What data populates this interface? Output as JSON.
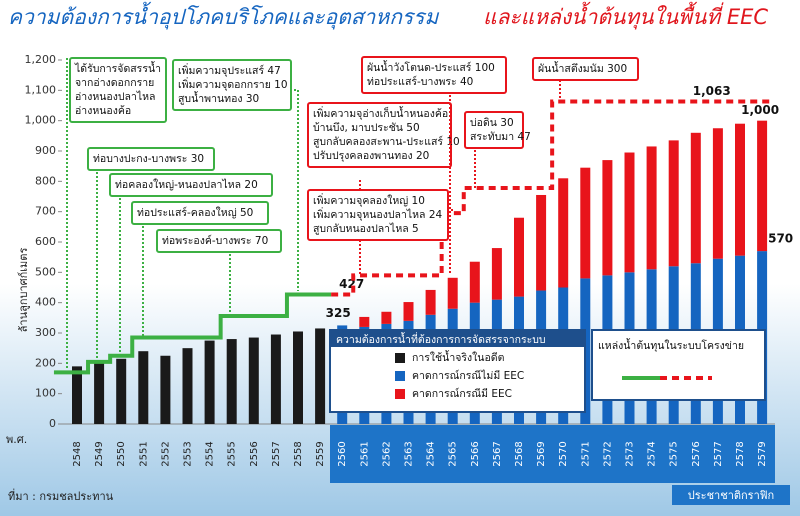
{
  "title": "ความต้องการน้ำอุปโภคบริโภคและอุตสาหกรรม",
  "title_highlight": "และแหล่งน้ำต้นทุนในพื้นที่ EEC",
  "source": "ที่มา : กรมชลประทาน",
  "credit": "ประชาชาติกราฟิก",
  "chart_data": {
    "type": "bar",
    "stacked": true,
    "y_label": "ล้านลูกบาศก์เมตร",
    "x_label": "พ.ศ.",
    "legend_title": "ความต้องการน้ำที่ต้องการการจัดสรรจากระบบ",
    "categories": [
      "2548",
      "2549",
      "2550",
      "2551",
      "2552",
      "2553",
      "2554",
      "2555",
      "2556",
      "2557",
      "2558",
      "2559",
      "2560",
      "2561",
      "2562",
      "2563",
      "2564",
      "2565",
      "2566",
      "2567",
      "2568",
      "2569",
      "2570",
      "2571",
      "2572",
      "2573",
      "2574",
      "2575",
      "2576",
      "2577",
      "2578",
      "2579"
    ],
    "ylim": [
      0,
      1200
    ],
    "yticks": [
      0,
      100,
      200,
      300,
      400,
      500,
      600,
      700,
      800,
      900,
      {
        "value": 1000,
        "label": "1,000"
      },
      {
        "value": 1100,
        "label": "1,100"
      },
      {
        "value": 1200,
        "label": "1,200"
      }
    ],
    "series": [
      {
        "name": "การใช้น้ำจริงในอดีต",
        "color": "#1a1a1a",
        "values": [
          190,
          205,
          215,
          240,
          225,
          250,
          275,
          280,
          285,
          295,
          305,
          315,
          null,
          null,
          null,
          null,
          null,
          null,
          null,
          null,
          null,
          null,
          null,
          null,
          null,
          null,
          null,
          null,
          null,
          null,
          null,
          null
        ]
      },
      {
        "name": "คาดการณ์กรณีไม่มี EEC",
        "color": "#1565c0",
        "values": [
          null,
          null,
          null,
          null,
          null,
          null,
          null,
          null,
          null,
          null,
          null,
          null,
          325,
          320,
          330,
          340,
          360,
          380,
          400,
          410,
          420,
          440,
          450,
          480,
          490,
          500,
          510,
          520,
          530,
          545,
          555,
          570
        ],
        "value_labels": [
          null,
          null,
          null,
          null,
          null,
          null,
          null,
          null,
          null,
          null,
          null,
          null,
          "325",
          null,
          null,
          null,
          null,
          null,
          null,
          null,
          null,
          null,
          null,
          null,
          null,
          null,
          null,
          null,
          null,
          null,
          null,
          "570"
        ]
      },
      {
        "name": "คาดการณ์กรณีมี EEC",
        "color": "#e8141b",
        "values": [
          null,
          null,
          null,
          null,
          null,
          null,
          null,
          null,
          null,
          null,
          null,
          null,
          null,
          33,
          40,
          62,
          82,
          102,
          135,
          170,
          260,
          315,
          360,
          365,
          380,
          395,
          405,
          415,
          430,
          430,
          435,
          430
        ]
      }
    ],
    "annotations": [
      {
        "text": "1,000",
        "category": "2579"
      }
    ],
    "supply": {
      "title": "แหล่งน้ำต้นทุนในระบบโครงข่าย",
      "existing": {
        "color": "#3cb043",
        "values": [
          170,
          205,
          225,
          285,
          285,
          285,
          285,
          356,
          356,
          356,
          427,
          427,
          null,
          null,
          null,
          null,
          null,
          null,
          null,
          null,
          null,
          null,
          null,
          null,
          null,
          null,
          null,
          null,
          null,
          null,
          null,
          null
        ],
        "value_labels": [
          null,
          null,
          null,
          null,
          null,
          null,
          null,
          null,
          null,
          null,
          null,
          "427",
          null,
          null,
          null,
          null,
          null,
          null,
          null,
          null,
          null,
          null,
          null,
          null,
          null,
          null,
          null,
          null,
          null,
          null,
          null,
          null
        ]
      },
      "planned": {
        "color": "#e8141b",
        "values": [
          null,
          null,
          null,
          null,
          null,
          null,
          null,
          null,
          null,
          null,
          null,
          null,
          427,
          490,
          490,
          490,
          490,
          695,
          778,
          778,
          778,
          778,
          1063,
          1063,
          1063,
          1063,
          1063,
          1063,
          1063,
          1063,
          1063,
          1063
        ],
        "value_labels": [
          null,
          null,
          null,
          null,
          null,
          null,
          null,
          null,
          null,
          null,
          null,
          null,
          null,
          null,
          null,
          null,
          null,
          null,
          null,
          null,
          null,
          null,
          null,
          null,
          null,
          null,
          null,
          "1,063",
          null,
          null,
          null,
          null
        ]
      }
    },
    "callouts": [
      {
        "color": "#3cb043",
        "lines": [
          "ได้รับการจัดสรรน้ำ",
          "จากอ่างดอกกราย",
          "อ่างหนองปลาไหล",
          "อ่างหนองค้อ"
        ]
      },
      {
        "color": "#3cb043",
        "lines": [
          "ท่อบางปะกง-บางพระ 30"
        ]
      },
      {
        "color": "#3cb043",
        "lines": [
          "ท่อคลองใหญ่-หนองปลาไหล 20"
        ]
      },
      {
        "color": "#3cb043",
        "lines": [
          "ท่อประแสร์-คลองใหญ่ 50"
        ]
      },
      {
        "color": "#3cb043",
        "lines": [
          "ท่อพระองค์-บางพระ 70"
        ]
      },
      {
        "color": "#3cb043",
        "lines": [
          "เพิ่มความจุประแสร์ 47",
          "เพิ่มความจุดอกกราย 10",
          "สูบน้ำพานทอง 30"
        ]
      },
      {
        "color": "#e8141b",
        "lines": [
          "เพิ่มความจุอ่างเก็บน้ำหนองค้อ",
          "บ้านบึง, มาบประชัน 50",
          "สูบกลับคลองสะพาน-ประแสร์ 10",
          "ปรับปรุงคลองพานทอง 20"
        ]
      },
      {
        "color": "#e8141b",
        "lines": [
          "เพิ่มความจุคลองใหญ่ 10",
          "เพิ่มความจุหนองปลาไหล 24",
          "สูบกลับหนองปลาไหล 5"
        ]
      },
      {
        "color": "#e8141b",
        "lines": [
          "ผันน้ำวังโตนด-ประแสร์ 100",
          "ท่อประแสร์-บางพระ 40"
        ]
      },
      {
        "color": "#e8141b",
        "lines": [
          "บ่อดิน 30",
          "สระทับมา 47"
        ]
      },
      {
        "color": "#e8141b",
        "lines": [
          "ผันน้ำสตึงมนัม 300"
        ]
      }
    ]
  }
}
